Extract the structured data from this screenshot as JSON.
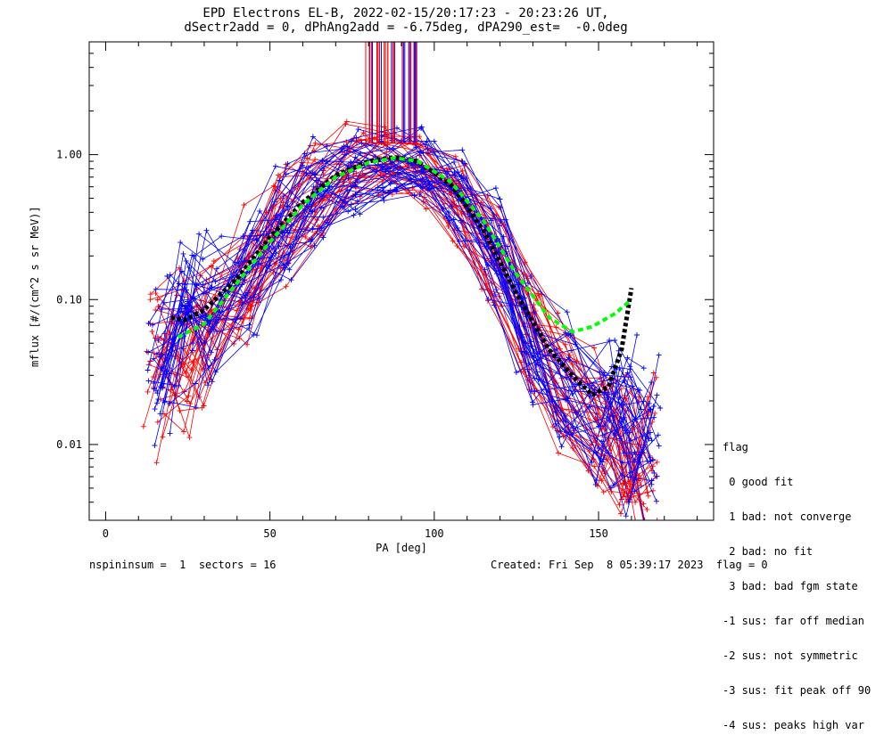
{
  "title_line1": "EPD Electrons EL-B, 2022-02-15/20:17:23 - 20:23:26 UT,",
  "title_line2": "dSectr2add = 0, dPhAng2add = -6.75deg, dPA290_est=  -0.0deg",
  "footer_left": "nspininsum =  1  sectors = 16",
  "footer_right": "Created: Fri Sep  8 05:39:17 2023  flag = 0",
  "legend": {
    "title": "flag",
    "items": [
      " 0 good fit",
      " 1 bad: not converge",
      " 2 bad: no fit",
      " 3 bad: bad fgm state",
      "-1 sus: far off median",
      "-2 sus: not symmetric",
      "-3 sus: fit peak off 90",
      "-4 sus: peaks high var"
    ]
  },
  "colors": {
    "red": "#ff0000",
    "blue": "#0000ff",
    "green_fit": "#00ff00",
    "black_fit": "#000000"
  },
  "chart_data": {
    "type": "line",
    "xlabel": "PA [deg]",
    "ylabel": "mflux [#/(cm^2 s sr MeV)]",
    "xlim": [
      -5,
      185
    ],
    "ylim": [
      0.003,
      6.0
    ],
    "yscale": "log",
    "xticks": [
      0,
      50,
      100,
      150
    ],
    "xtick_labels": [
      "0",
      "50",
      "100",
      "150"
    ],
    "yticks": [
      0.01,
      0.1,
      1.0
    ],
    "ytick_labels": [
      "0.01",
      "0.10",
      "1.00"
    ],
    "x_sample": [
      16,
      24,
      31,
      43,
      53,
      64,
      75,
      86,
      96,
      107,
      118,
      129,
      140,
      151,
      158,
      165
    ],
    "red_median": [
      0.03,
      0.04,
      0.06,
      0.14,
      0.3,
      0.55,
      0.82,
      0.9,
      0.8,
      0.55,
      0.23,
      0.07,
      0.025,
      0.015,
      0.01,
      0.008
    ],
    "blue_median": [
      0.045,
      0.065,
      0.1,
      0.18,
      0.32,
      0.55,
      0.78,
      0.86,
      0.82,
      0.55,
      0.22,
      0.06,
      0.025,
      0.018,
      0.015,
      0.014
    ],
    "fit_green": {
      "x": [
        22,
        30,
        40,
        50,
        60,
        70,
        80,
        88,
        95,
        105,
        115,
        125,
        135,
        142,
        148,
        155,
        160
      ],
      "y": [
        0.055,
        0.068,
        0.13,
        0.25,
        0.45,
        0.7,
        0.88,
        0.95,
        0.9,
        0.65,
        0.35,
        0.15,
        0.075,
        0.06,
        0.065,
        0.08,
        0.1
      ]
    },
    "fit_black": {
      "x": [
        20,
        24,
        30,
        40,
        50,
        60,
        70,
        80,
        88,
        95,
        105,
        115,
        125,
        135,
        142,
        148,
        153,
        157,
        160
      ],
      "y": [
        0.075,
        0.072,
        0.085,
        0.14,
        0.27,
        0.47,
        0.72,
        0.9,
        0.96,
        0.9,
        0.62,
        0.3,
        0.11,
        0.045,
        0.03,
        0.022,
        0.025,
        0.045,
        0.12
      ]
    }
  }
}
